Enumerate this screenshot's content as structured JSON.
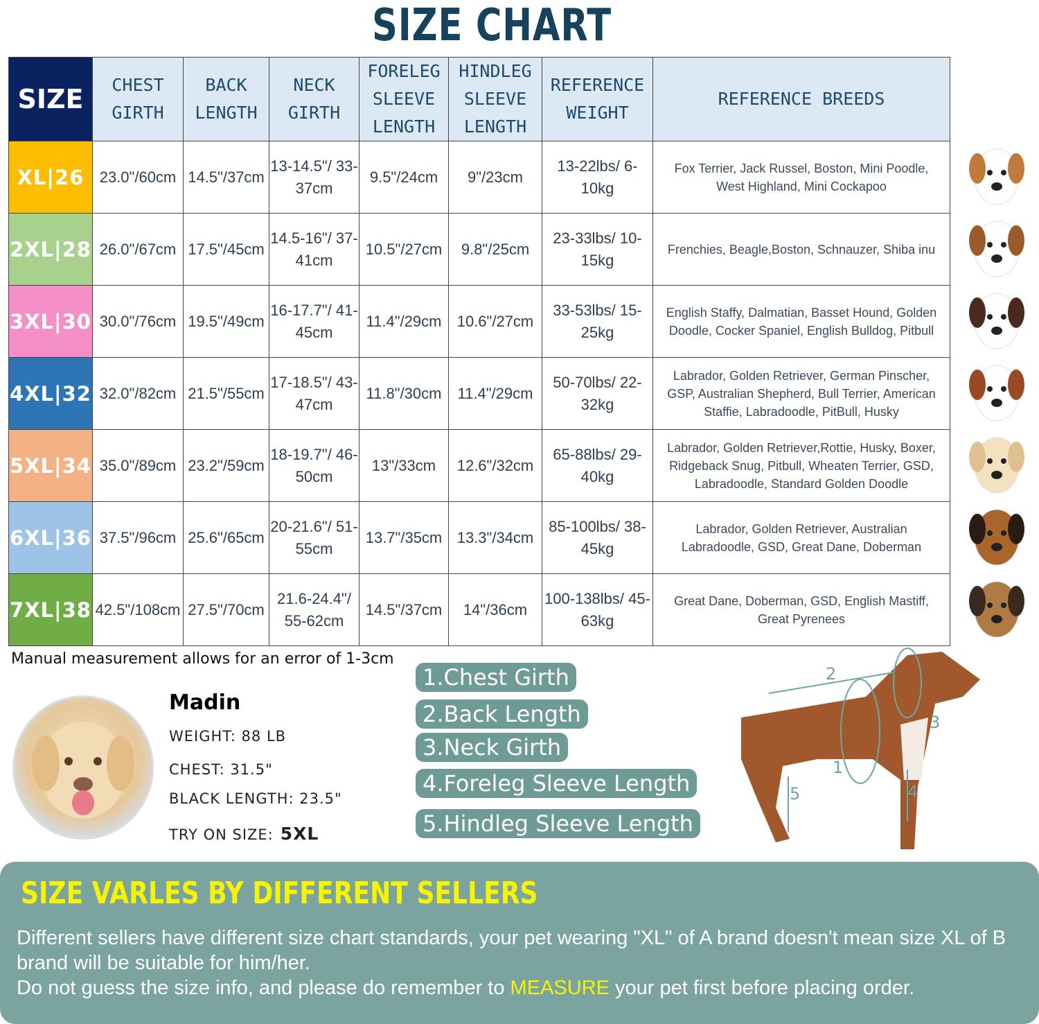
{
  "title": "SIZE CHART",
  "headers": [
    "SIZE",
    "CHEST GIRTH",
    "BACK LENGTH",
    "NECK GIRTH",
    "FORELEG SLEEVE LENGTH",
    "HINDLEG SLEEVE LENGTH",
    "REFERENCE WEIGHT",
    "REFERENCE BREEDS"
  ],
  "rows": [
    {
      "size": "XL|26",
      "color": "#fdbd00",
      "chest": "23.0\"/60cm",
      "back": "14.5\"/37cm",
      "neck": "13-14.5\"/ 33-37cm",
      "foreleg": "9.5\"/24cm",
      "hindleg": "9\"/23cm",
      "weight": "13-22lbs/ 6-10kg",
      "breeds": "Fox Terrier, Jack Russel, Boston, Mini Poodle, West Highland, Mini Cockapoo",
      "dog": "jack-russell"
    },
    {
      "size": "2XL|28",
      "color": "#a9d18e",
      "chest": "26.0\"/67cm",
      "back": "17.5\"/45cm",
      "neck": "14.5-16\"/ 37-41cm",
      "foreleg": "10.5\"/27cm",
      "hindleg": "9.8\"/25cm",
      "weight": "23-33lbs/ 10-15kg",
      "breeds": "Frenchies, Beagle,Boston, Schnauzer, Shiba inu",
      "dog": "beagle"
    },
    {
      "size": "3XL|30",
      "color": "#f48fc8",
      "chest": "30.0\"/76cm",
      "back": "19.5\"/49cm",
      "neck": "16-17.7\"/ 41-45cm",
      "foreleg": "11.4\"/29cm",
      "hindleg": "10.6\"/27cm",
      "weight": "33-53lbs/ 15-25kg",
      "breeds": "English Staffy, Dalmatian, Basset Hound, Golden Doodle, Cocker Spaniel, English Bulldog, Pitbull",
      "dog": "dalmatian"
    },
    {
      "size": "4XL|32",
      "color": "#2e75b6",
      "chest": "32.0\"/82cm",
      "back": "21.5\"/55cm",
      "neck": "17-18.5\"/ 43-47cm",
      "foreleg": "11.8\"/30cm",
      "hindleg": "11.4\"/29cm",
      "weight": "50-70lbs/ 22-32kg",
      "breeds": "Labrador, Golden Retriever, German Pinscher, GSP, Australian Shepherd, Bull Terrier, American Staffie, Labradoodle, PitBull, Husky",
      "dog": "staffie"
    },
    {
      "size": "5XL|34",
      "color": "#f4b183",
      "chest": "35.0\"/89cm",
      "back": "23.2\"/59cm",
      "neck": "18-19.7\"/ 46-50cm",
      "foreleg": "13\"/33cm",
      "hindleg": "12.6\"/32cm",
      "weight": "65-88lbs/ 29-40kg",
      "breeds": "Labrador, Golden Retriever,Rottie, Husky, Boxer, Ridgeback Snug, Pitbull, Wheaten Terrier, GSD, Labradoodle,  Standard Golden Doodle",
      "dog": "labrador"
    },
    {
      "size": "6XL|36",
      "color": "#9dc3e6",
      "chest": "37.5\"/96cm",
      "back": "25.6\"/65cm",
      "neck": "20-21.6\"/ 51-55cm",
      "foreleg": "13.7\"/35cm",
      "hindleg": "13.3\"/34cm",
      "weight": "85-100lbs/ 38-45kg",
      "breeds": "Labrador, Golden Retriever, Australian Labradoodle, GSD, Great Dane, Doberman",
      "dog": "german-shepherd"
    },
    {
      "size": "7XL|38",
      "color": "#70ad47",
      "chest": "42.5\"/108cm",
      "back": "27.5\"/70cm",
      "neck": "21.6-24.4\"/ 55-62cm",
      "foreleg": "14.5\"/37cm",
      "hindleg": "14\"/36cm",
      "weight": "100-138lbs/ 45-63kg",
      "breeds": "Great Dane, Doberman, GSD, English Mastiff, Great Pyrenees",
      "dog": "mastiff"
    }
  ],
  "note": "Manual measurement allows for an error of 1-3cm",
  "model": {
    "name": "Madin",
    "weight": "WEIGHT: 88 LB",
    "chest": "CHEST: 31.5\"",
    "length": "BLACK LENGTH: 23.5\"",
    "try_label": "TRY ON SIZE:",
    "try_size": "5XL"
  },
  "measurements": [
    "1.Chest Girth",
    "2.Back Length",
    "3.Neck Girth",
    "4.Foreleg Sleeve Length",
    "5.Hindleg Sleeve Length"
  ],
  "diagram_labels": [
    "1",
    "2",
    "3",
    "4",
    "5"
  ],
  "panel": {
    "title": "SIZE VARLES BY DIFFERENT SELLERS",
    "line1": "Different sellers have different size chart standards, your pet wearing \"XL\" of A brand doesn't mean size  XL of B brand will be suitable for him/her.",
    "line2_pre": "Do not guess the size info, and please do remember to ",
    "line2_hl": "MEASURE",
    "line2_post": " your pet first before placing order."
  },
  "colors": {
    "title": "#16425b",
    "header_bg": "#dce9f5",
    "size_header": "#0b2260",
    "pill": "#6f9b97",
    "panel": "#7ba4a1",
    "highlight": "#f6f400"
  }
}
